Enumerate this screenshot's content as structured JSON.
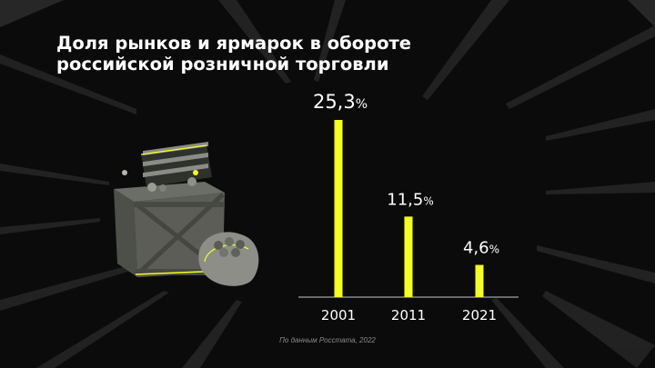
{
  "title_lines": [
    "Доля рынков и ярмарок в обороте",
    "российской розничной торговли"
  ],
  "source": "По данным Росстата, 2022",
  "colors": {
    "background": "#0b0b0b",
    "bar": "#f5ff1e",
    "text": "#ffffff",
    "source": "#8a8a8a"
  },
  "illustration": {
    "icons": [
      "wooden-crate-icon",
      "crate-basket-icon",
      "potato-sack-icon"
    ]
  },
  "chart_data": {
    "type": "bar",
    "title": "Доля рынков и ярмарок в обороте российской розничной торговли",
    "categories": [
      "2001",
      "2011",
      "2021"
    ],
    "values": [
      25.3,
      11.5,
      4.6
    ],
    "value_labels": [
      "25,3",
      "11,5",
      "4,6"
    ],
    "unit": "%",
    "xlabel": "",
    "ylabel": "",
    "ylim": [
      0,
      25.3
    ],
    "grid": false,
    "legend": "none"
  }
}
